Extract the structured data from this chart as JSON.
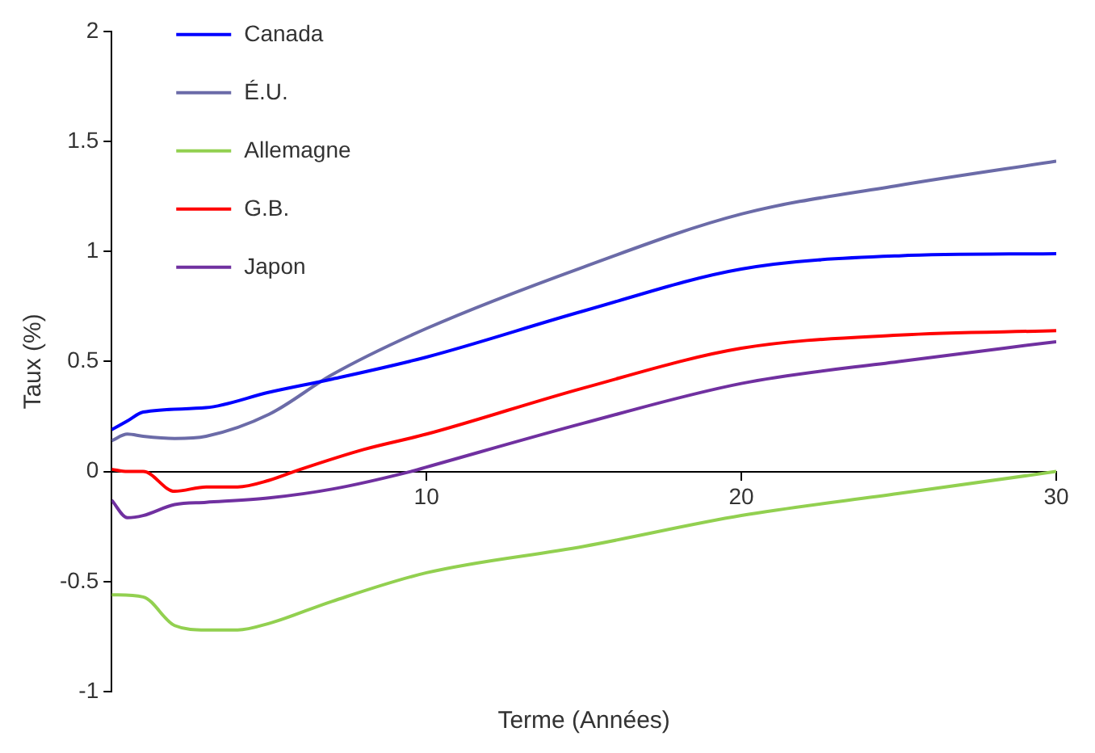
{
  "chart_data": {
    "type": "line",
    "xlabel": "Terme (Années)",
    "ylabel": "Taux (%)",
    "xlim": [
      0,
      30
    ],
    "xticks": [
      10,
      20,
      30
    ],
    "ylim": [
      -1,
      2
    ],
    "yticks": [
      -1,
      -0.5,
      0,
      0.5,
      1,
      1.5,
      2
    ],
    "grid": false,
    "legend": "top left",
    "marker": "none",
    "line_style": "solid",
    "series": [
      {
        "name": "Canada",
        "color": "#0000ff",
        "x": [
          0,
          0.5,
          1,
          3,
          5,
          7,
          10,
          15,
          20,
          25,
          30
        ],
        "values": [
          0.19,
          0.23,
          0.27,
          0.29,
          0.36,
          0.42,
          0.52,
          0.73,
          0.92,
          0.98,
          0.99
        ]
      },
      {
        "name": "É.U.",
        "color": "#6b6ba8",
        "x": [
          0,
          0.5,
          1,
          2,
          3,
          5,
          7,
          10,
          15,
          20,
          25,
          30
        ],
        "values": [
          0.14,
          0.17,
          0.16,
          0.15,
          0.16,
          0.26,
          0.44,
          0.65,
          0.93,
          1.17,
          1.3,
          1.41
        ]
      },
      {
        "name": "Allemagne",
        "color": "#92d050",
        "x": [
          0,
          1,
          2,
          3,
          4,
          5,
          7,
          10,
          15,
          20,
          25,
          30
        ],
        "values": [
          -0.56,
          -0.57,
          -0.7,
          -0.72,
          -0.72,
          -0.69,
          -0.59,
          -0.46,
          -0.34,
          -0.2,
          -0.1,
          0
        ]
      },
      {
        "name": "G.B.",
        "color": "#ff0000",
        "x": [
          0,
          0.5,
          1,
          2,
          3,
          4,
          5,
          6,
          8,
          10,
          15,
          20,
          25,
          30
        ],
        "values": [
          0.01,
          0,
          0,
          -0.09,
          -0.07,
          -0.07,
          -0.04,
          0.01,
          0.1,
          0.17,
          0.38,
          0.56,
          0.62,
          0.64
        ]
      },
      {
        "name": "Japon",
        "color": "#7030a0",
        "x": [
          0,
          0.5,
          1,
          2,
          3,
          5,
          7,
          9.5,
          10,
          15,
          20,
          25,
          30
        ],
        "values": [
          -0.13,
          -0.21,
          -0.2,
          -0.15,
          -0.14,
          -0.12,
          -0.08,
          0,
          0.02,
          0.22,
          0.4,
          0.5,
          0.59
        ]
      }
    ]
  }
}
